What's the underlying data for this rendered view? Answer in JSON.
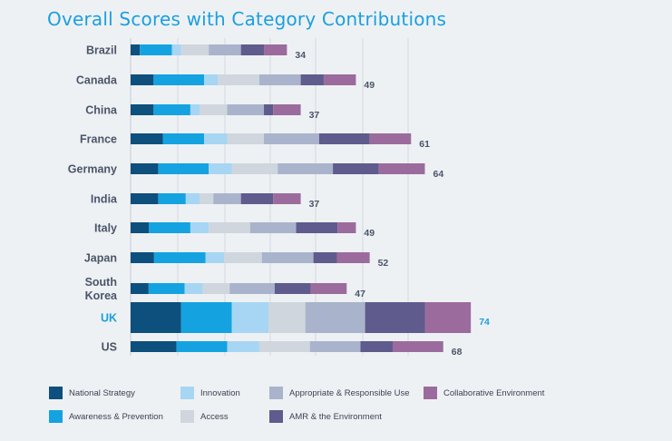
{
  "title": "Overall Scores with Category Contributions",
  "chart_data": {
    "type": "bar",
    "orientation": "horizontal",
    "stacked": true,
    "categories": [
      "Brazil",
      "Canada",
      "China",
      "France",
      "Germany",
      "India",
      "Italy",
      "Japan",
      "South Korea",
      "UK",
      "US"
    ],
    "totals": [
      34,
      49,
      37,
      61,
      64,
      37,
      49,
      52,
      47,
      74,
      68
    ],
    "highlight": "UK",
    "grid": true,
    "legend_position": "bottom",
    "series": [
      {
        "name": "National Strategy",
        "color": "#0d4f7d",
        "values": [
          2,
          5,
          5,
          7,
          6,
          6,
          4,
          5,
          4,
          11,
          10
        ]
      },
      {
        "name": "Awareness & Prevention",
        "color": "#14a3e0",
        "values": [
          7,
          11,
          8,
          9,
          11,
          6,
          9,
          11,
          8,
          11,
          11
        ]
      },
      {
        "name": "Innovation",
        "color": "#a6d6f3",
        "values": [
          2,
          3,
          2,
          5,
          5,
          3,
          4,
          4,
          4,
          8,
          7
        ]
      },
      {
        "name": "Access",
        "color": "#cfd6dd",
        "values": [
          6,
          9,
          6,
          8,
          10,
          3,
          9,
          8,
          6,
          8,
          11
        ]
      },
      {
        "name": "Appropriate & Responsible Use",
        "color": "#a9b4cc",
        "values": [
          7,
          9,
          8,
          12,
          12,
          6,
          10,
          11,
          10,
          13,
          11
        ]
      },
      {
        "name": "AMR & the Environment",
        "color": "#5f5b8d",
        "values": [
          5,
          5,
          2,
          11,
          10,
          7,
          9,
          5,
          8,
          13,
          7
        ]
      },
      {
        "name": "Collaborative Environment",
        "color": "#9b6b9e",
        "values": [
          5,
          7,
          6,
          9,
          10,
          6,
          4,
          7,
          8,
          10,
          11
        ]
      }
    ]
  }
}
